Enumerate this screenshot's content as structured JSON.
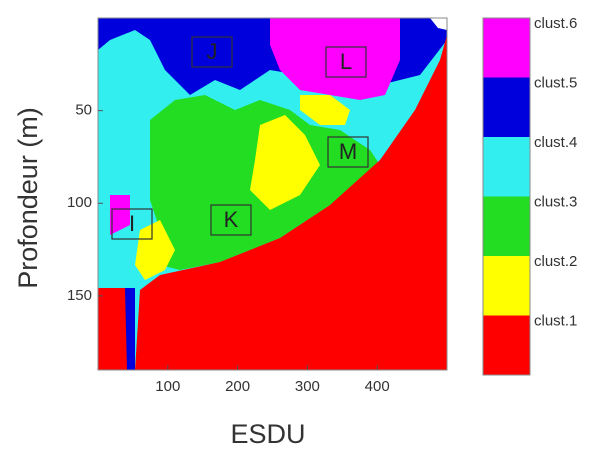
{
  "chart_data": {
    "type": "cluster-map",
    "xlabel": "ESDU",
    "ylabel": "Profondeur (m)",
    "xlim": [
      0,
      500
    ],
    "ylim": [
      0,
      190
    ],
    "y_inverted": true,
    "xticks": [
      100,
      200,
      300,
      400
    ],
    "yticks": [
      50,
      100,
      150
    ],
    "annotations": [
      "I",
      "J",
      "K",
      "L",
      "M"
    ],
    "colorbar": {
      "labels": [
        "clust.1",
        "clust.2",
        "clust.3",
        "clust.4",
        "clust.5",
        "clust.6"
      ],
      "colors": [
        "#ff0000",
        "#ffff00",
        "#22dd22",
        "#33eeee",
        "#0000dd",
        "#ff00ff"
      ]
    }
  }
}
